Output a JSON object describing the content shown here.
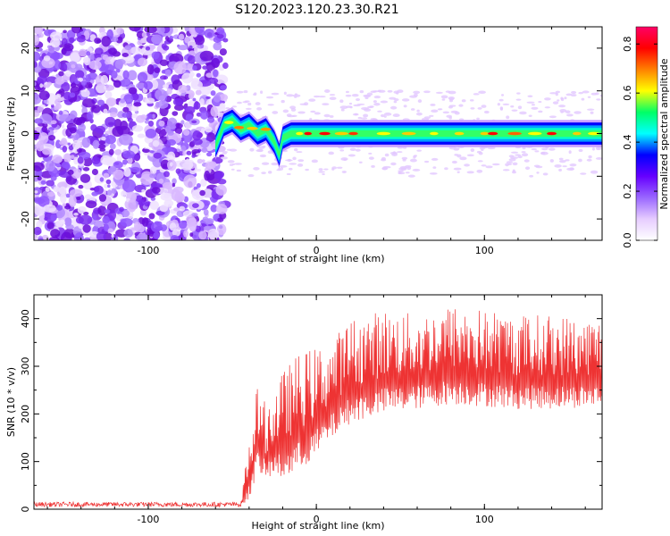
{
  "title": "S120.2023.120.23.30.R21",
  "chart_data": [
    {
      "type": "heatmap",
      "xlabel": "Height of straight line (km)",
      "ylabel": "Frequency (Hz)",
      "xlim": [
        -168,
        170
      ],
      "ylim": [
        -25,
        25
      ],
      "xticks": [
        -100,
        0,
        100
      ],
      "yticks": [
        -20,
        -10,
        0,
        10,
        20
      ],
      "colorbar": {
        "label": "Normalized spectral amplitude",
        "range": [
          0.0,
          0.87
        ],
        "ticks": [
          0.0,
          0.2,
          0.4,
          0.6,
          0.8
        ],
        "colormap": [
          "#ffffff",
          "#e6ccff",
          "#9966ff",
          "#6600ff",
          "#0000ff",
          "#00ffff",
          "#00ff66",
          "#ffff00",
          "#ff8000",
          "#ff0000",
          "#ff0066"
        ]
      },
      "noise_region_x": [
        -168,
        -58
      ],
      "signal_trace": {
        "x": [
          -60,
          -55,
          -50,
          -45,
          -40,
          -35,
          -30,
          -25,
          -22,
          -20,
          -15,
          -10,
          0,
          20,
          50,
          80,
          100,
          130,
          170
        ],
        "frequency": [
          -3,
          2,
          3,
          1,
          2,
          0,
          1,
          -2,
          -5,
          -1,
          0,
          0,
          0,
          0,
          0,
          0,
          0,
          0,
          0
        ]
      }
    },
    {
      "type": "line",
      "xlabel": "Height of straight line (km)",
      "ylabel": "SNR (10 * v/v)",
      "xlim": [
        -168,
        170
      ],
      "ylim": [
        0,
        450
      ],
      "xticks": [
        -100,
        0,
        100
      ],
      "yticks": [
        0,
        100,
        200,
        300,
        400
      ],
      "color": "#ee3333",
      "envelope": {
        "x": [
          -168,
          -45,
          -40,
          -35,
          -30,
          -25,
          -20,
          -10,
          0,
          10,
          20,
          40,
          60,
          80,
          100,
          120,
          140,
          170
        ],
        "baseline": [
          5,
          5,
          20,
          80,
          60,
          70,
          60,
          80,
          110,
          150,
          180,
          200,
          210,
          220,
          215,
          210,
          210,
          215
        ],
        "peak": [
          15,
          15,
          150,
          260,
          220,
          250,
          290,
          330,
          340,
          360,
          400,
          420,
          410,
          430,
          420,
          410,
          410,
          400
        ]
      }
    }
  ]
}
